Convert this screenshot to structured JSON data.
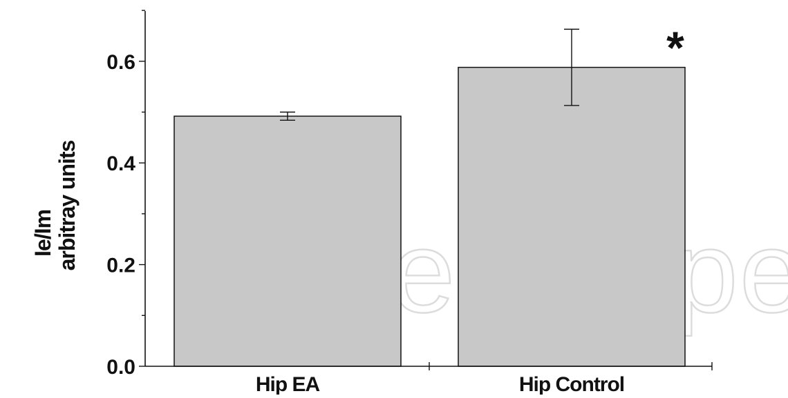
{
  "watermark": "IntechOpen",
  "chart_data": {
    "type": "bar",
    "categories": [
      "Hip EA",
      "Hip Control"
    ],
    "values": [
      0.492,
      0.588
    ],
    "error": [
      0.008,
      0.075
    ],
    "annotations": [
      "",
      "*"
    ],
    "ylabel_line1": "Ie/Im",
    "ylabel_line2": "arbitray units",
    "ylim": [
      0,
      0.7
    ],
    "yticks": [
      0.0,
      0.2,
      0.4,
      0.6
    ],
    "ytick_labels": [
      "0.0",
      "0.2",
      "0.4",
      "0.6"
    ],
    "grid": false,
    "bar_color": "#c8c8c8",
    "line_color": "#111111"
  }
}
